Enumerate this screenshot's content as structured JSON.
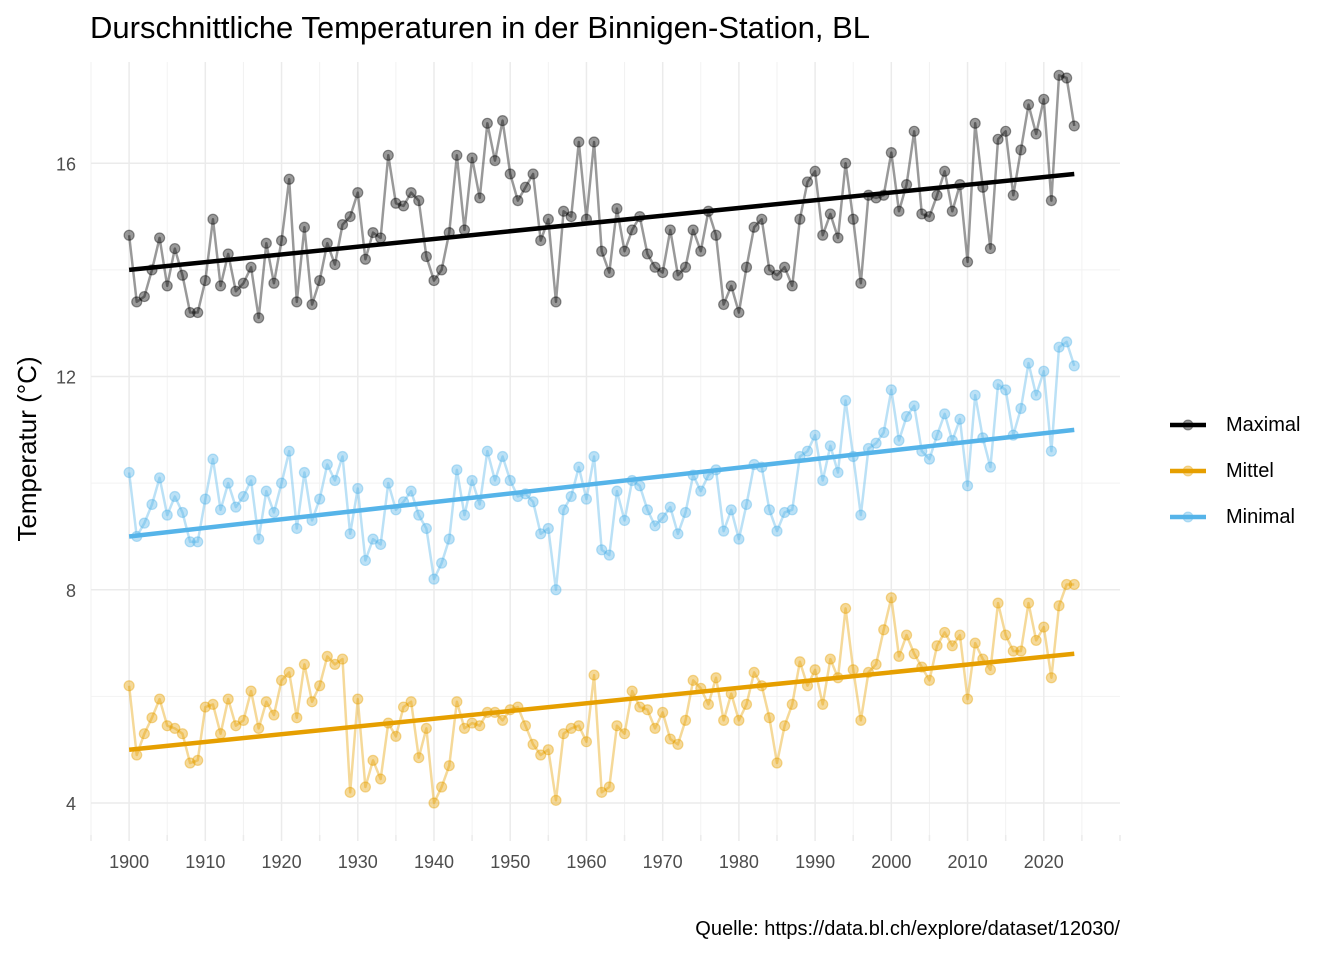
{
  "chart_data": {
    "type": "line",
    "title": "Durschnittliche Temperaturen in der Binnigen-Station, BL",
    "xlabel": "",
    "ylabel": "Temperatur (°C)",
    "caption": "Quelle: https://data.bl.ch/explore/dataset/12030/",
    "xlim": [
      1895,
      2030
    ],
    "ylim": [
      3.4,
      17.9
    ],
    "x_ticks": [
      1900,
      1910,
      1920,
      1930,
      1940,
      1950,
      1960,
      1970,
      1980,
      1990,
      2000,
      2010,
      2020
    ],
    "y_ticks": [
      4,
      8,
      12,
      16
    ],
    "grid": true,
    "legend_position": "right",
    "x_start": 1900,
    "series": [
      {
        "name": "Maximal",
        "color": "#000000",
        "trend": [
          14.0,
          15.8
        ],
        "values": [
          14.65,
          13.4,
          13.5,
          14.0,
          14.6,
          13.7,
          14.4,
          13.9,
          13.2,
          13.2,
          13.8,
          14.95,
          13.7,
          14.3,
          13.6,
          13.75,
          14.05,
          13.1,
          14.5,
          13.75,
          14.55,
          15.7,
          13.4,
          14.8,
          13.35,
          13.8,
          14.5,
          14.1,
          14.85,
          15.0,
          15.45,
          14.2,
          14.7,
          14.6,
          16.15,
          15.25,
          15.2,
          15.45,
          15.3,
          14.25,
          13.8,
          14.0,
          14.7,
          16.15,
          14.75,
          16.1,
          15.35,
          16.75,
          16.05,
          16.8,
          15.8,
          15.3,
          15.55,
          15.8,
          14.55,
          14.95,
          13.4,
          15.1,
          15.0,
          16.4,
          14.95,
          16.4,
          14.35,
          13.95,
          15.15,
          14.35,
          14.75,
          15.0,
          14.3,
          14.05,
          13.95,
          14.75,
          13.9,
          14.05,
          14.75,
          14.35,
          15.1,
          14.65,
          13.35,
          13.7,
          13.2,
          14.05,
          14.8,
          14.95,
          14.0,
          13.9,
          14.05,
          13.7,
          14.95,
          15.65,
          15.85,
          14.65,
          15.05,
          14.6,
          16.0,
          14.95,
          13.75,
          15.4,
          15.35,
          15.4,
          16.2,
          15.1,
          15.6,
          16.6,
          15.05,
          15.0,
          15.4,
          15.85,
          15.1,
          15.6,
          14.15,
          16.75,
          15.55,
          14.4,
          16.45,
          16.6,
          15.4,
          16.25,
          17.1,
          16.55,
          17.2,
          15.3,
          17.65,
          17.6,
          16.7
        ]
      },
      {
        "name": "Mittel",
        "color": "#E69F00",
        "trend": [
          5.0,
          6.8
        ],
        "values": [
          6.2,
          4.9,
          5.3,
          5.6,
          5.95,
          5.45,
          5.4,
          5.3,
          4.75,
          4.8,
          5.8,
          5.85,
          5.3,
          5.95,
          5.45,
          5.55,
          6.1,
          5.4,
          5.9,
          5.65,
          6.3,
          6.45,
          5.6,
          6.6,
          5.9,
          6.2,
          6.75,
          6.6,
          6.7,
          4.2,
          5.95,
          4.3,
          4.8,
          4.45,
          5.5,
          5.25,
          5.8,
          5.9,
          4.85,
          5.4,
          4.0,
          4.3,
          4.7,
          5.9,
          5.4,
          5.5,
          5.45,
          5.7,
          5.7,
          5.55,
          5.75,
          5.8,
          5.45,
          5.1,
          4.9,
          5.0,
          4.05,
          5.3,
          5.4,
          5.45,
          5.15,
          6.4,
          4.2,
          4.3,
          5.45,
          5.3,
          6.1,
          5.8,
          5.75,
          5.4,
          5.7,
          5.2,
          5.1,
          5.55,
          6.3,
          6.15,
          5.85,
          6.35,
          5.55,
          6.05,
          5.55,
          5.85,
          6.45,
          6.2,
          5.6,
          4.75,
          5.45,
          5.85,
          6.65,
          6.2,
          6.5,
          5.85,
          6.7,
          6.35,
          7.65,
          6.5,
          5.55,
          6.45,
          6.6,
          7.25,
          7.85,
          6.75,
          7.15,
          6.8,
          6.55,
          6.3,
          6.95,
          7.2,
          6.95,
          7.15,
          5.95,
          7.0,
          6.7,
          6.5,
          7.75,
          7.15,
          6.85,
          6.85,
          7.75,
          7.05,
          7.3,
          6.35,
          7.7,
          8.1,
          8.1
        ]
      },
      {
        "name": "Minimal",
        "color": "#56B4E9",
        "trend": [
          9.0,
          11.0
        ],
        "values": [
          10.2,
          9.0,
          9.25,
          9.6,
          10.1,
          9.4,
          9.75,
          9.45,
          8.9,
          8.9,
          9.7,
          10.45,
          9.5,
          10.0,
          9.55,
          9.75,
          10.05,
          8.95,
          9.85,
          9.45,
          10.0,
          10.6,
          9.15,
          10.2,
          9.3,
          9.7,
          10.35,
          10.05,
          10.5,
          9.05,
          9.9,
          8.55,
          8.95,
          8.85,
          10.0,
          9.5,
          9.65,
          9.85,
          9.4,
          9.15,
          8.2,
          8.5,
          8.95,
          10.25,
          9.4,
          10.05,
          9.6,
          10.6,
          10.05,
          10.5,
          10.05,
          9.75,
          9.8,
          9.65,
          9.05,
          9.15,
          8.0,
          9.5,
          9.75,
          10.3,
          9.7,
          10.5,
          8.75,
          8.65,
          9.85,
          9.3,
          10.05,
          9.95,
          9.5,
          9.2,
          9.35,
          9.55,
          9.05,
          9.45,
          10.15,
          9.85,
          10.15,
          10.25,
          9.1,
          9.5,
          8.95,
          9.6,
          10.35,
          10.3,
          9.5,
          9.1,
          9.45,
          9.5,
          10.5,
          10.6,
          10.9,
          10.05,
          10.7,
          10.2,
          11.55,
          10.5,
          9.4,
          10.65,
          10.75,
          10.95,
          11.75,
          10.8,
          11.25,
          11.45,
          10.6,
          10.45,
          10.9,
          11.3,
          10.8,
          11.2,
          9.95,
          11.65,
          10.85,
          10.3,
          11.85,
          11.75,
          10.9,
          11.4,
          12.25,
          11.65,
          12.1,
          10.6,
          12.55,
          12.65,
          12.2
        ]
      }
    ]
  }
}
